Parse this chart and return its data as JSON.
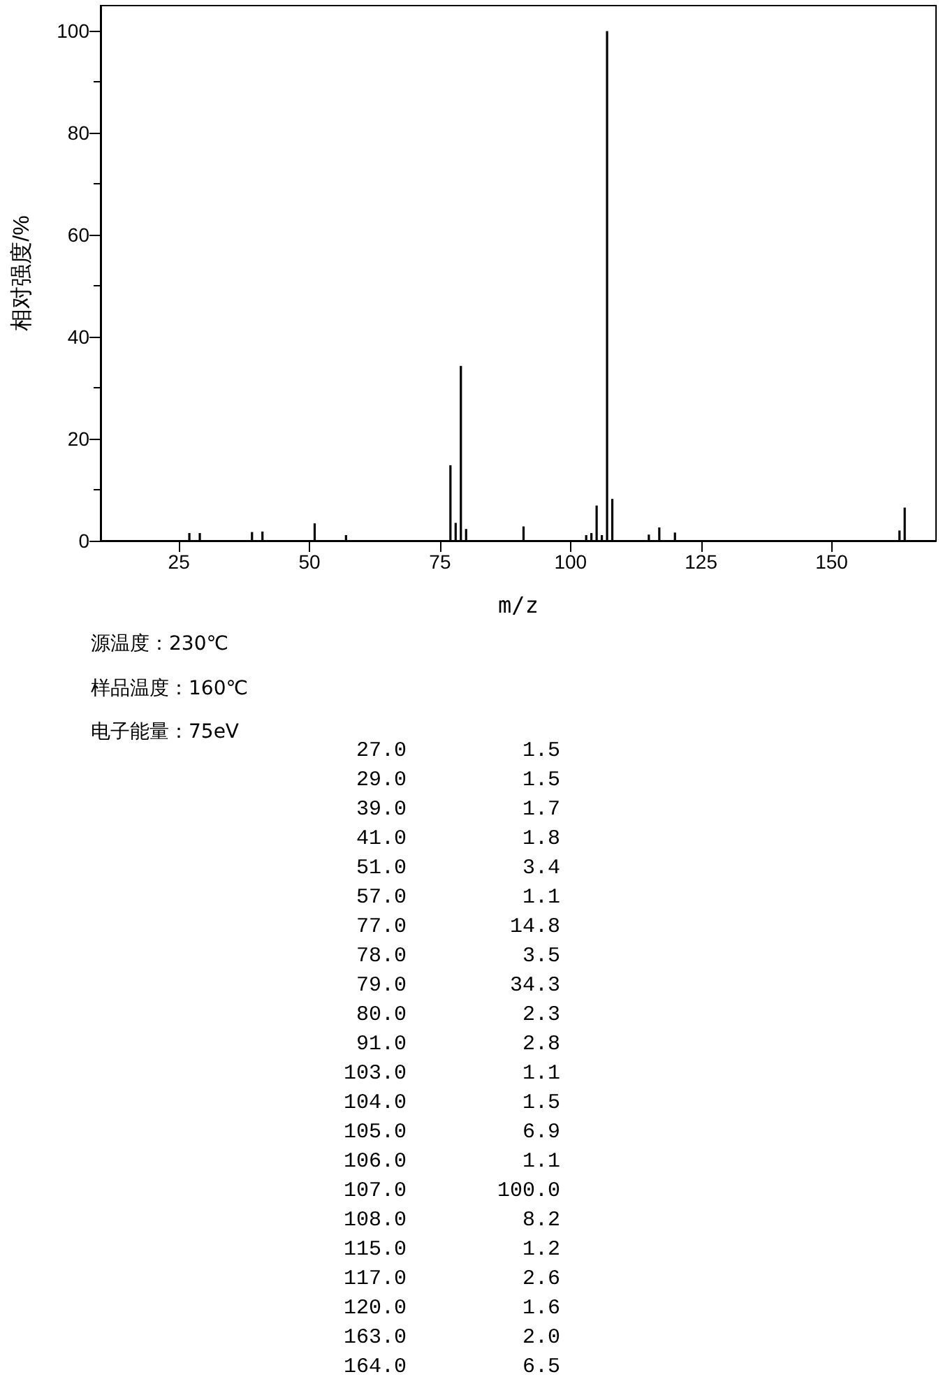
{
  "chart_data": {
    "type": "bar",
    "xlabel": "m/z",
    "ylabel": "相对强度/%",
    "x": [
      27,
      29,
      39,
      41,
      51,
      57,
      77,
      78,
      79,
      80,
      91,
      103,
      104,
      105,
      106,
      107,
      108,
      115,
      117,
      120,
      163,
      164
    ],
    "values": [
      1.5,
      1.5,
      1.7,
      1.8,
      3.4,
      1.1,
      14.8,
      3.5,
      34.3,
      2.3,
      2.8,
      1.1,
      1.5,
      6.9,
      1.1,
      100.0,
      8.2,
      1.2,
      2.6,
      1.6,
      2.0,
      6.5
    ],
    "color": "#000000",
    "xlim": [
      10,
      170
    ],
    "xticks": [
      25,
      50,
      75,
      100,
      125,
      150
    ],
    "ylim": [
      0,
      105
    ],
    "yticks": [
      0,
      20,
      40,
      60,
      80,
      100
    ],
    "annotations": [
      "源温度：230℃",
      "样品温度：160℃",
      "电子能量：75eV",
      "27.0",
      "1.5",
      "29.0",
      "1.5",
      "39.0",
      "1.7",
      "41.0",
      "1.8",
      "51.0",
      "3.4",
      "57.0",
      "1.1",
      "77.0",
      "14.8",
      "78.0",
      "3.5",
      "79.0",
      "34.3",
      "80.0",
      "2.3",
      "91.0",
      "2.8",
      "103.0",
      "1.1",
      "104.0",
      "1.5",
      "105.0",
      "6.9",
      "106.0",
      "1.1",
      "107.0",
      "100.0",
      "108.0",
      "8.2",
      "115.0",
      "1.2",
      "117.0",
      "2.6",
      "120.0",
      "1.6",
      "163.0",
      "2.0",
      "164.0",
      "6.5"
    ]
  }
}
